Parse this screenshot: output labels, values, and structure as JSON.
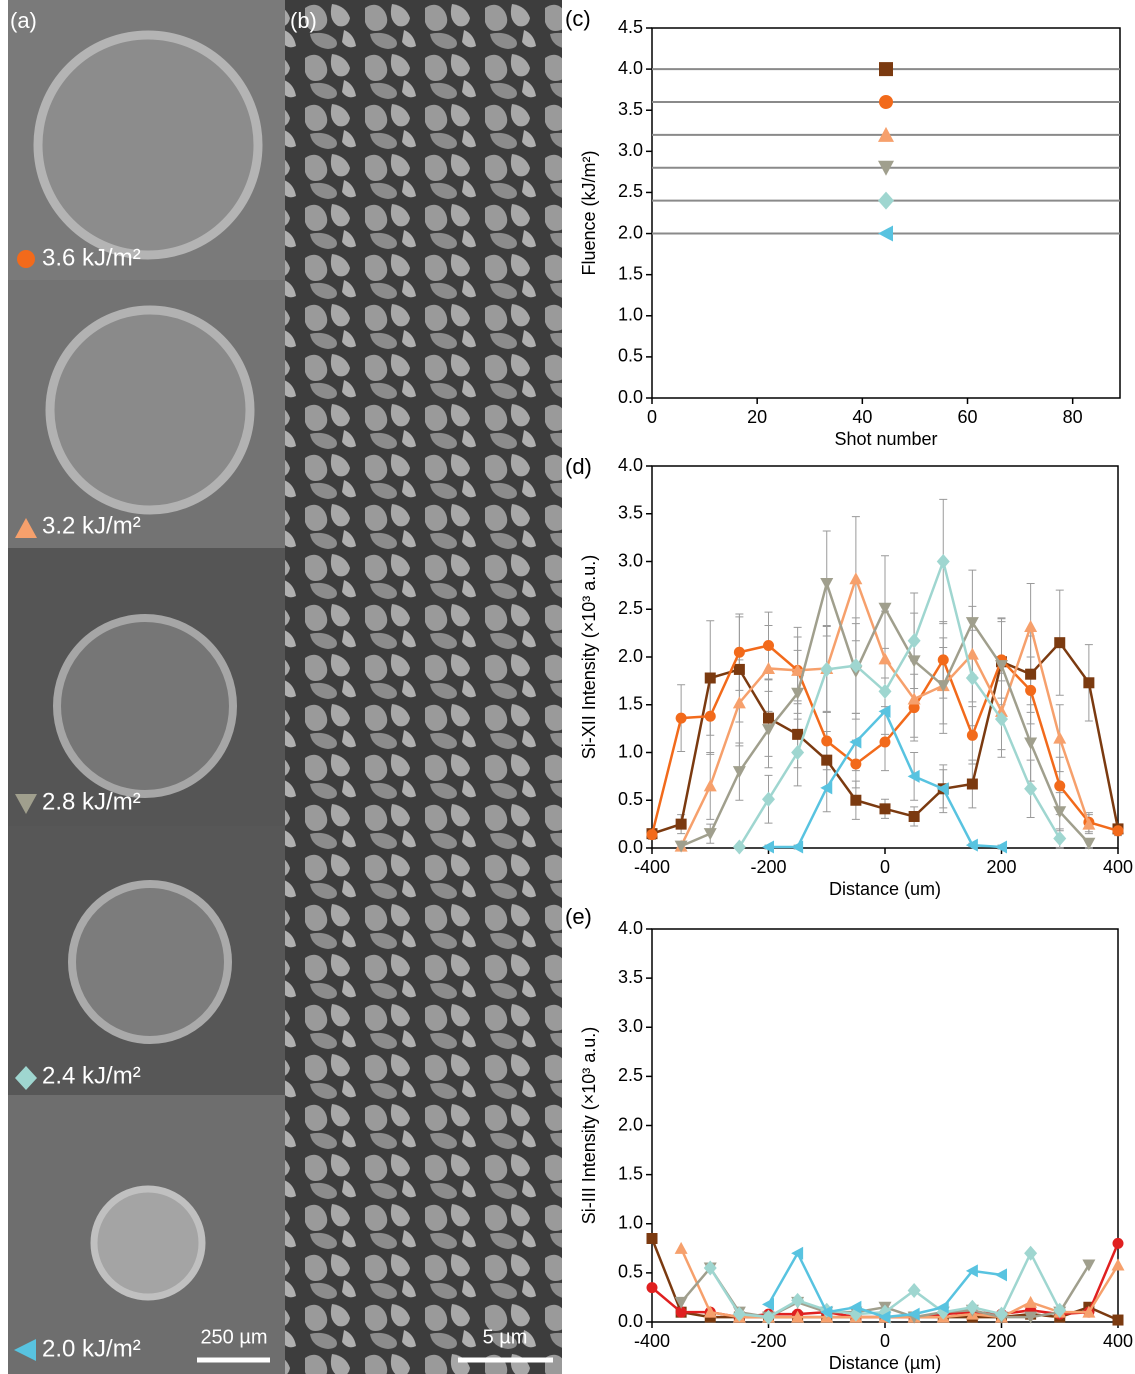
{
  "panels": {
    "a": {
      "label": "(a)",
      "tiles": [
        "3.6 kJ/m²",
        "3.2 kJ/m²",
        "2.8 kJ/m²",
        "2.4 kJ/m²",
        "2.0 kJ/m²"
      ],
      "scale_bar": "250 µm"
    },
    "b": {
      "label": "(b)",
      "scale_bar": "5 µm"
    }
  },
  "chart_data": [
    {
      "type": "scatter",
      "panel_label": "(c)",
      "xlabel": "Shot number",
      "ylabel": "Fluence (kJ/m²)",
      "xlim": [
        0,
        89
      ],
      "xticks": [
        0,
        20,
        40,
        60,
        80
      ],
      "ylim": [
        0,
        4.5
      ],
      "yticks": [
        {
          "value": 0,
          "label": "0.0"
        },
        0.5,
        {
          "value": 1,
          "label": "1.0"
        },
        1.5,
        {
          "value": 2,
          "label": "2.0"
        },
        2.5,
        {
          "value": 3,
          "label": "3.0"
        },
        3.5,
        {
          "value": 4,
          "label": "4.0"
        },
        4.5
      ],
      "hlines": true,
      "series": [
        {
          "color": "#7b3a10",
          "marker": "square",
          "x": [
            44.5
          ],
          "values": [
            4.0
          ]
        },
        {
          "color": "#f26a1b",
          "marker": "circle",
          "x": [
            44.5
          ],
          "values": [
            3.6
          ]
        },
        {
          "color": "#f6a06c",
          "marker": "triangle-up",
          "x": [
            44.5
          ],
          "values": [
            3.2
          ]
        },
        {
          "color": "#a09f8d",
          "marker": "triangle-down",
          "x": [
            44.5
          ],
          "values": [
            2.8
          ]
        },
        {
          "color": "#9fd6d0",
          "marker": "diamond",
          "x": [
            44.5
          ],
          "values": [
            2.4
          ]
        },
        {
          "color": "#58c3e0",
          "marker": "triangle-left",
          "x": [
            44.5
          ],
          "values": [
            2.0
          ]
        }
      ]
    },
    {
      "type": "line",
      "panel_label": "(d)",
      "xlabel": "Distance (um)",
      "ylabel": "Si-XII Intensity (×10³ a.u.)",
      "xlim": [
        -400,
        400
      ],
      "xticks": [
        -400,
        -200,
        0,
        200,
        400
      ],
      "ylim": [
        0,
        4
      ],
      "yticks": [
        {
          "value": 0,
          "label": "0.0"
        },
        0.5,
        {
          "value": 1,
          "label": "1.0"
        },
        1.5,
        {
          "value": 2,
          "label": "2.0"
        },
        2.5,
        {
          "value": 3,
          "label": "3.0"
        },
        3.5,
        {
          "value": 4,
          "label": "4.0"
        }
      ],
      "x": [
        -400,
        -350,
        -300,
        -250,
        -200,
        -150,
        -100,
        -50,
        0,
        50,
        100,
        150,
        200,
        250,
        300,
        350,
        400
      ],
      "series": [
        {
          "color": "#7b3a10",
          "marker": "square",
          "values": [
            0.15,
            0.25,
            1.78,
            1.87,
            1.36,
            1.19,
            0.92,
            0.5,
            0.41,
            0.33,
            0.62,
            0.67,
            1.95,
            1.82,
            2.15,
            1.73,
            0.2
          ],
          "errors": [
            0.05,
            0.1,
            0.6,
            0.55,
            0.4,
            0.35,
            0.3,
            0.2,
            0.1,
            0.1,
            0.2,
            0.25,
            0.45,
            0.4,
            0.55,
            0.4,
            0.05
          ]
        },
        {
          "color": "#f26a1b",
          "marker": "circle",
          "values": [
            0.14,
            1.36,
            1.38,
            2.05,
            2.12,
            1.86,
            1.12,
            0.88,
            1.11,
            1.47,
            1.97,
            1.18,
            1.97,
            1.65,
            0.65,
            0.27,
            0.18
          ],
          "errors": [
            0.05,
            0.35,
            0.4,
            0.4,
            0.35,
            0.35,
            0.3,
            0.25,
            0.3,
            0.35,
            0.4,
            0.3,
            0.4,
            0.35,
            0.3,
            0.1,
            0.05
          ]
        },
        {
          "color": "#f6a06c",
          "marker": "triangle-up",
          "values": [
            null,
            0.02,
            0.65,
            1.52,
            1.88,
            1.86,
            1.88,
            2.82,
            1.98,
            1.56,
            1.7,
            2.03,
            1.43,
            2.32,
            1.15,
            0.25,
            null
          ],
          "errors": [
            null,
            0.02,
            0.35,
            0.45,
            0.45,
            0.45,
            0.45,
            0.65,
            0.5,
            0.4,
            0.4,
            0.5,
            0.4,
            0.45,
            0.35,
            0.1,
            null
          ]
        },
        {
          "color": "#a09f8d",
          "marker": "triangle-down",
          "values": [
            null,
            0.02,
            0.15,
            0.8,
            1.24,
            1.62,
            2.77,
            1.85,
            2.51,
            1.96,
            1.7,
            2.36,
            1.91,
            1.1,
            0.38,
            0.05,
            null
          ],
          "errors": [
            null,
            0.02,
            0.1,
            0.3,
            0.4,
            0.45,
            0.55,
            0.5,
            0.55,
            0.5,
            0.5,
            0.55,
            0.5,
            0.4,
            0.2,
            0.05,
            null
          ]
        },
        {
          "color": "#9fd6d0",
          "marker": "diamond",
          "values": [
            null,
            null,
            null,
            0.01,
            0.51,
            1.0,
            1.87,
            1.91,
            1.64,
            2.17,
            3.0,
            1.78,
            1.35,
            0.62,
            0.1,
            null,
            null
          ],
          "errors": [
            null,
            null,
            null,
            0.02,
            0.25,
            0.35,
            0.45,
            0.5,
            0.45,
            0.5,
            0.65,
            0.5,
            0.4,
            0.3,
            0.1,
            null,
            null
          ]
        },
        {
          "color": "#58c3e0",
          "marker": "triangle-left",
          "values": [
            null,
            null,
            null,
            null,
            0.01,
            0.01,
            0.63,
            1.11,
            1.43,
            0.75,
            0.62,
            0.03,
            0.01,
            null,
            null,
            null,
            null
          ],
          "errors": [
            null,
            null,
            null,
            null,
            0.02,
            0.02,
            0.25,
            0.3,
            0.35,
            0.25,
            0.25,
            0.02,
            0.02,
            null,
            null,
            null,
            null
          ]
        }
      ]
    },
    {
      "type": "line",
      "panel_label": "(e)",
      "xlabel": "Distance (µm)",
      "ylabel": "Si-III Intensity (×10³ a.u.)",
      "xlim": [
        -400,
        400
      ],
      "xticks": [
        -400,
        -200,
        0,
        200,
        400
      ],
      "ylim": [
        0,
        4
      ],
      "yticks": [
        {
          "value": 0,
          "label": "0.0"
        },
        0.5,
        {
          "value": 1,
          "label": "1.0"
        },
        1.5,
        {
          "value": 2,
          "label": "2.0"
        },
        2.5,
        {
          "value": 3,
          "label": "3.0"
        },
        3.5,
        {
          "value": 4,
          "label": "4.0"
        }
      ],
      "x": [
        -400,
        -350,
        -300,
        -250,
        -200,
        -150,
        -100,
        -50,
        0,
        50,
        100,
        150,
        200,
        250,
        300,
        350,
        400
      ],
      "series": [
        {
          "color": "#7b3a10",
          "marker": "square",
          "values": [
            0.85,
            0.1,
            0.05,
            0.05,
            0.05,
            0.05,
            0.05,
            0.05,
            0.05,
            0.05,
            0.05,
            0.05,
            0.05,
            0.08,
            0.05,
            0.15,
            0.02
          ]
        },
        {
          "color": "#e02020",
          "marker": "circle",
          "values": [
            0.35,
            0.1,
            0.1,
            0.05,
            0.08,
            0.08,
            0.1,
            0.05,
            0.05,
            0.05,
            0.08,
            0.1,
            0.08,
            0.12,
            0.08,
            0.1,
            0.8
          ]
        },
        {
          "color": "#f6a06c",
          "marker": "triangle-up",
          "values": [
            null,
            0.75,
            0.1,
            0.05,
            0.05,
            0.05,
            0.05,
            0.05,
            0.05,
            0.05,
            0.05,
            0.08,
            0.05,
            0.2,
            0.1,
            0.1,
            0.58
          ]
        },
        {
          "color": "#a09f8d",
          "marker": "triangle-down",
          "values": [
            null,
            0.2,
            0.55,
            0.1,
            0.05,
            0.2,
            0.1,
            0.1,
            0.15,
            0.05,
            0.1,
            0.12,
            0.05,
            0.05,
            0.1,
            0.58,
            null
          ]
        },
        {
          "color": "#9fd6d0",
          "marker": "diamond",
          "values": [
            null,
            null,
            0.55,
            0.08,
            0.05,
            0.22,
            0.12,
            0.08,
            0.1,
            0.32,
            0.1,
            0.15,
            0.08,
            0.7,
            0.12,
            null,
            null
          ]
        },
        {
          "color": "#58c3e0",
          "marker": "triangle-left",
          "values": [
            null,
            null,
            null,
            null,
            0.18,
            0.7,
            0.1,
            0.15,
            0.05,
            0.08,
            0.15,
            0.52,
            0.48,
            null,
            null,
            null,
            null
          ]
        }
      ]
    }
  ]
}
